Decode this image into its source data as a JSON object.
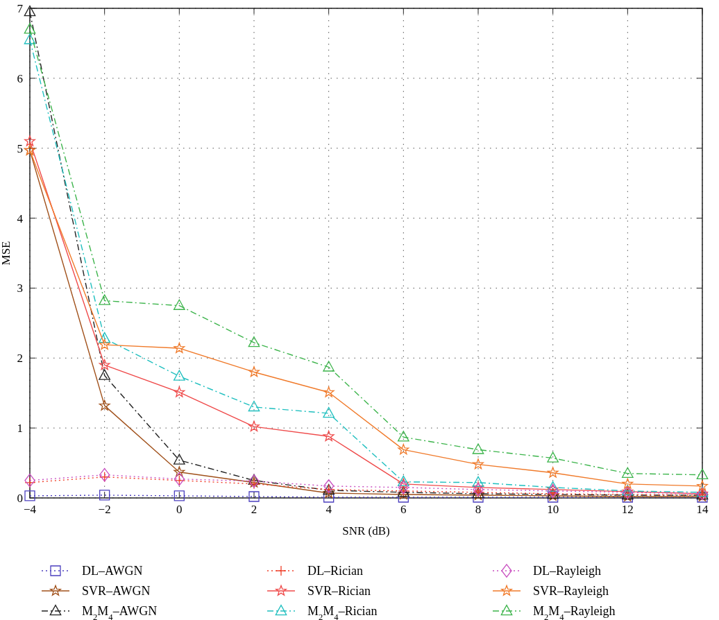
{
  "chart_data": {
    "type": "line",
    "xlabel": "SNR (dB)",
    "ylabel": "MSE",
    "x": [
      -4,
      -2,
      0,
      2,
      4,
      6,
      8,
      10,
      12,
      14
    ],
    "xlim": [
      -4,
      14
    ],
    "xticks": [
      -4,
      -2,
      0,
      2,
      4,
      6,
      8,
      10,
      12,
      14
    ],
    "ylim": [
      0,
      7
    ],
    "yticks": [
      0,
      1,
      2,
      3,
      4,
      5,
      6,
      7
    ],
    "grid": true,
    "legend": "bottom",
    "series": [
      {
        "name": "DL–AWGN",
        "color": "#4b3fbf",
        "marker": "square",
        "line_style": "dotted",
        "values": [
          0.03,
          0.04,
          0.03,
          0.02,
          0.01,
          0.01,
          0.01,
          0.01,
          0.01,
          0.01
        ]
      },
      {
        "name": "SVR–AWGN",
        "color": "#a0501a",
        "marker": "star",
        "line_style": "solid",
        "values": [
          4.97,
          1.32,
          0.37,
          0.22,
          0.07,
          0.05,
          0.04,
          0.03,
          0.02,
          0.02
        ]
      },
      {
        "name": "M$_{2}$M$_{4}$–AWGN",
        "color": "#222222",
        "marker": "triangle",
        "line_style": "dashed",
        "values": [
          6.95,
          1.75,
          0.54,
          0.25,
          0.11,
          0.08,
          0.06,
          0.05,
          0.04,
          0.04
        ]
      },
      {
        "name": "DL–Rician",
        "color": "#f0402a",
        "marker": "cross",
        "line_style": "dotted",
        "values": [
          0.22,
          0.3,
          0.25,
          0.2,
          0.12,
          0.1,
          0.08,
          0.06,
          0.05,
          0.04
        ]
      },
      {
        "name": "SVR–Rician",
        "color": "#ef4a4a",
        "marker": "star",
        "line_style": "solid",
        "values": [
          5.1,
          1.9,
          1.51,
          1.02,
          0.88,
          0.2,
          0.15,
          0.12,
          0.09,
          0.06
        ]
      },
      {
        "name": "M$_{2}$M$_{4}$–Rician",
        "color": "#1fbfbf",
        "marker": "triangle",
        "line_style": "dashed",
        "values": [
          6.55,
          2.28,
          1.74,
          1.3,
          1.21,
          0.23,
          0.22,
          0.15,
          0.1,
          0.08
        ]
      },
      {
        "name": "DL–Rayleigh",
        "color": "#c94fc0",
        "marker": "diamond",
        "line_style": "dotted",
        "values": [
          0.25,
          0.33,
          0.27,
          0.24,
          0.17,
          0.15,
          0.12,
          0.1,
          0.08,
          0.06
        ]
      },
      {
        "name": "SVR–Rayleigh",
        "color": "#f07a2a",
        "marker": "star",
        "line_style": "solid",
        "values": [
          4.97,
          2.19,
          2.14,
          1.8,
          1.51,
          0.69,
          0.48,
          0.36,
          0.2,
          0.17
        ]
      },
      {
        "name": "M$_{2}$M$_{4}$–Rayleigh",
        "color": "#3cb44b",
        "marker": "triangle",
        "line_style": "dashed",
        "values": [
          6.7,
          2.82,
          2.75,
          2.22,
          1.87,
          0.87,
          0.69,
          0.57,
          0.35,
          0.33
        ]
      }
    ]
  }
}
